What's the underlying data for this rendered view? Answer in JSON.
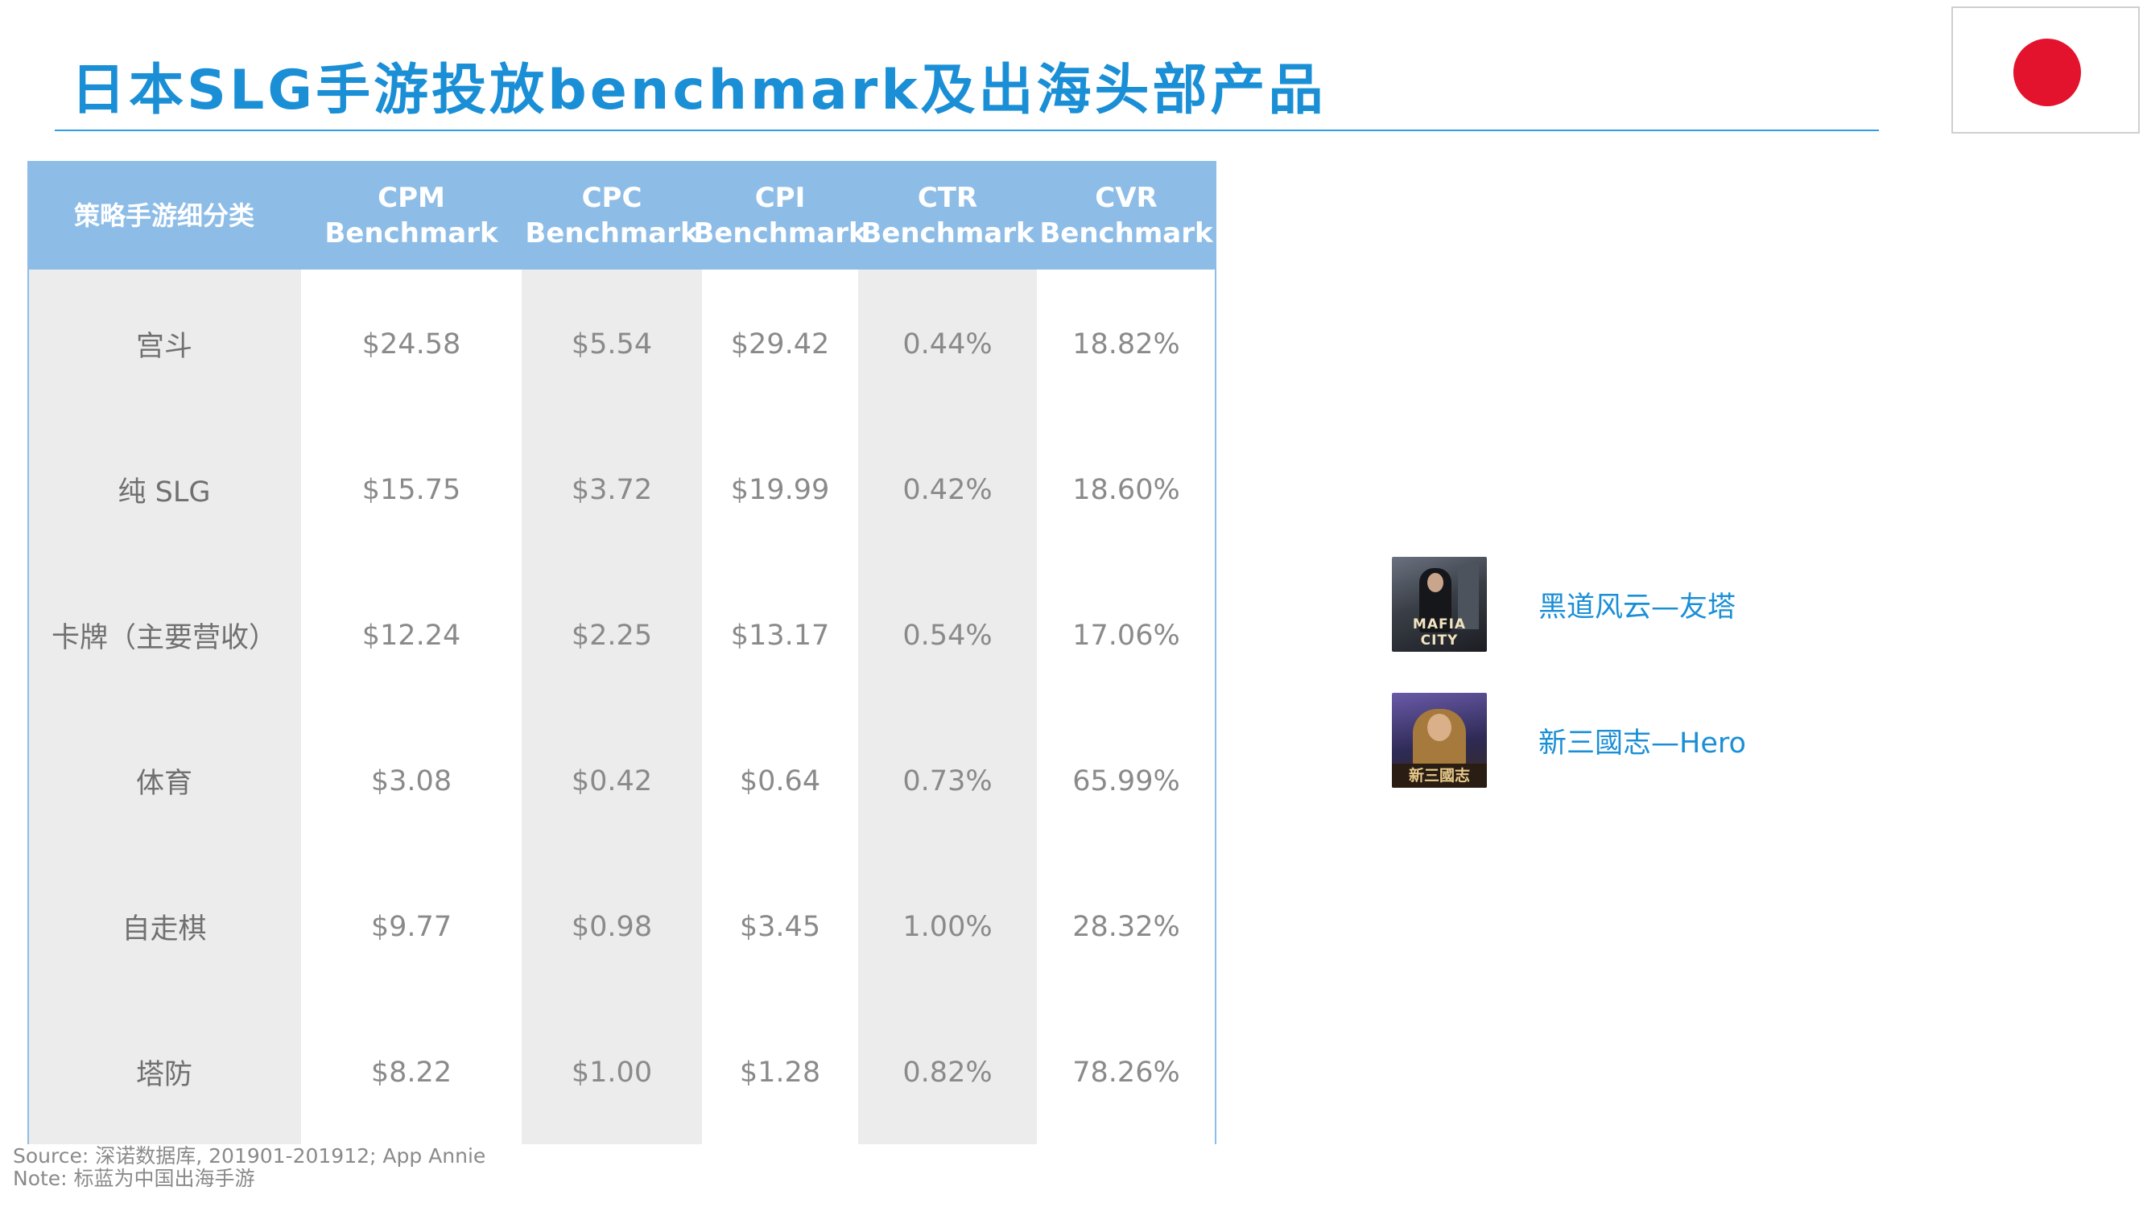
{
  "title": "日本SLG手游投放benchmark及出海头部产品",
  "flag": {
    "icon": "japan-flag-icon",
    "circle_color": "#e3122d"
  },
  "colors": {
    "accent": "#1a8fd6",
    "header_bg": "#8dbde7",
    "shaded_column": "#ececec"
  },
  "table": {
    "headers": [
      {
        "line1": "策略手游细分类",
        "line2": ""
      },
      {
        "line1": "CPM",
        "line2": "Benchmark"
      },
      {
        "line1": "CPC",
        "line2": "Benchmark"
      },
      {
        "line1": "CPI",
        "line2": "Benchmark"
      },
      {
        "line1": "CTR",
        "line2": "Benchmark"
      },
      {
        "line1": "CVR",
        "line2": "Benchmark"
      }
    ],
    "rows": [
      {
        "category": "宫斗",
        "cpm": "$24.58",
        "cpc": "$5.54",
        "cpi": "$29.42",
        "ctr": "0.44%",
        "cvr": "18.82%"
      },
      {
        "category": "纯 SLG",
        "cpm": "$15.75",
        "cpc": "$3.72",
        "cpi": "$19.99",
        "ctr": "0.42%",
        "cvr": "18.60%"
      },
      {
        "category": "卡牌（主要营收）",
        "cpm": "$12.24",
        "cpc": "$2.25",
        "cpi": "$13.17",
        "ctr": "0.54%",
        "cvr": "17.06%"
      },
      {
        "category": "体育",
        "cpm": "$3.08",
        "cpc": "$0.42",
        "cpi": "$0.64",
        "ctr": "0.73%",
        "cvr": "65.99%"
      },
      {
        "category": "自走棋",
        "cpm": "$9.77",
        "cpc": "$0.98",
        "cpi": "$3.45",
        "ctr": "1.00%",
        "cvr": "28.32%"
      },
      {
        "category": "塔防",
        "cpm": "$8.22",
        "cpc": "$1.00",
        "cpi": "$1.28",
        "ctr": "0.82%",
        "cvr": "78.26%"
      }
    ]
  },
  "products": [
    {
      "name": "黑道风云—友塔",
      "icon": "mafia-city-app-icon",
      "icon_text": "MAFIA CITY"
    },
    {
      "name": "新三國志—Hero",
      "icon": "three-kingdoms-app-icon",
      "icon_text": "新三國志"
    }
  ],
  "notes": {
    "source": "Source: 深诺数据库, 201901-201912; App Annie",
    "note": "Note: 标蓝为中国出海手游"
  }
}
